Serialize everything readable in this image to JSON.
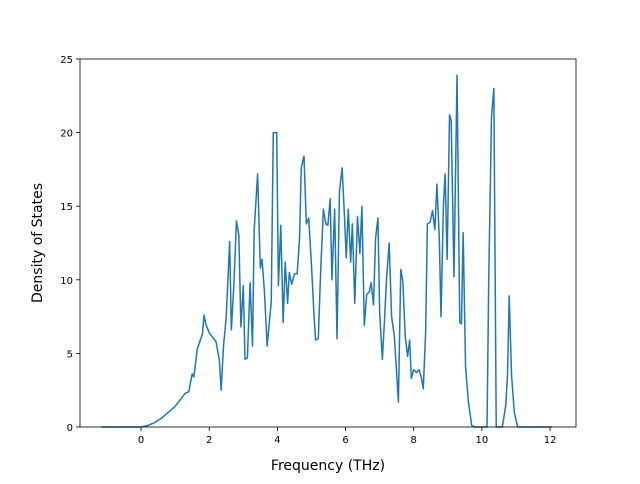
{
  "chart_data": {
    "type": "line",
    "xlabel": "Frequency (THz)",
    "ylabel": "Density of States",
    "xlim": [
      -1.79,
      12.76
    ],
    "ylim": [
      0,
      25
    ],
    "xticks": [
      0,
      2,
      4,
      6,
      8,
      10,
      12
    ],
    "yticks": [
      0,
      5,
      10,
      15,
      20,
      25
    ],
    "series": [
      {
        "color": "#1f77b4",
        "x": [
          -1.15,
          -0.5,
          0,
          0.2,
          0.4,
          0.6,
          0.8,
          1.0,
          1.2,
          1.3,
          1.4,
          1.5,
          1.55,
          1.65,
          1.8,
          1.85,
          1.9,
          2.0,
          2.1,
          2.2,
          2.3,
          2.35,
          2.42,
          2.5,
          2.6,
          2.65,
          2.72,
          2.8,
          2.87,
          2.93,
          3.0,
          3.05,
          3.12,
          3.2,
          3.27,
          3.32,
          3.42,
          3.5,
          3.55,
          3.62,
          3.7,
          3.82,
          3.88,
          3.98,
          4.03,
          4.1,
          4.17,
          4.23,
          4.3,
          4.35,
          4.42,
          4.5,
          4.58,
          4.65,
          4.7,
          4.78,
          4.85,
          4.92,
          5.0,
          5.07,
          5.12,
          5.2,
          5.27,
          5.35,
          5.42,
          5.48,
          5.55,
          5.6,
          5.68,
          5.75,
          5.82,
          5.9,
          5.97,
          6.02,
          6.08,
          6.15,
          6.2,
          6.27,
          6.35,
          6.42,
          6.48,
          6.55,
          6.62,
          6.7,
          6.75,
          6.82,
          6.88,
          6.95,
          7.0,
          7.08,
          7.15,
          7.2,
          7.28,
          7.35,
          7.43,
          7.5,
          7.55,
          7.62,
          7.68,
          7.75,
          7.82,
          7.88,
          7.93,
          8.0,
          8.08,
          8.15,
          8.22,
          8.28,
          8.35,
          8.4,
          8.48,
          8.55,
          8.62,
          8.68,
          8.75,
          8.8,
          8.87,
          8.92,
          8.98,
          9.05,
          9.1,
          9.18,
          9.27,
          9.35,
          9.4,
          9.45,
          9.52,
          9.6,
          9.7,
          9.8,
          10.15,
          10.2,
          10.28,
          10.35,
          10.42,
          10.6,
          10.7,
          10.75,
          10.8,
          10.87,
          10.95,
          11.05,
          12.05
        ],
        "values": [
          0,
          0,
          0,
          0.1,
          0.3,
          0.6,
          1.0,
          1.4,
          2.0,
          2.3,
          2.4,
          3.6,
          3.4,
          5.3,
          6.3,
          7.6,
          7.0,
          6.4,
          6.1,
          5.8,
          4.5,
          2.5,
          5.5,
          7.5,
          12.6,
          6.6,
          9.5,
          14.0,
          13.0,
          6.8,
          9.6,
          4.6,
          4.7,
          9.8,
          5.5,
          13.4,
          17.2,
          10.8,
          11.4,
          9.2,
          5.5,
          8.5,
          20.0,
          20.0,
          9.6,
          13.7,
          7.1,
          11.2,
          8.4,
          10.5,
          9.7,
          10.4,
          10.4,
          12.8,
          17.6,
          18.4,
          13.8,
          14.2,
          11.0,
          7.8,
          5.9,
          6.0,
          10.6,
          14.8,
          13.8,
          13.7,
          15.5,
          10.0,
          14.8,
          6.0,
          16.0,
          17.6,
          14.2,
          11.5,
          14.8,
          11.2,
          13.8,
          8.4,
          14.3,
          11.8,
          15.0,
          6.9,
          9.0,
          9.2,
          9.8,
          8.3,
          12.8,
          14.2,
          7.8,
          4.6,
          7.6,
          10.0,
          12.5,
          7.5,
          6.2,
          3.6,
          1.7,
          10.7,
          9.9,
          6.2,
          4.8,
          5.9,
          3.3,
          3.9,
          3.7,
          3.9,
          3.4,
          2.6,
          6.5,
          13.8,
          13.9,
          14.7,
          13.4,
          16.5,
          12.8,
          7.5,
          15.0,
          17.2,
          11.4,
          21.2,
          20.8,
          10.2,
          23.9,
          7.1,
          7.0,
          13.2,
          4.1,
          1.8,
          0.1,
          0,
          0,
          10.0,
          21.0,
          23.0,
          0,
          0,
          1.5,
          3.5,
          8.9,
          3.5,
          1.0,
          0,
          0
        ]
      }
    ]
  }
}
